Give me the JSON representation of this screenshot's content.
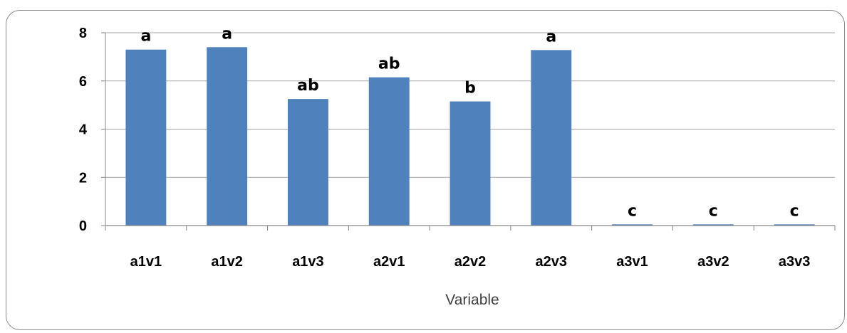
{
  "chart_data": {
    "type": "bar",
    "title": "",
    "xlabel": "Variable",
    "ylabel": "",
    "categories": [
      "a1v1",
      "a1v2",
      "a1v3",
      "a2v1",
      "a2v2",
      "a2v3",
      "a3v1",
      "a3v2",
      "a3v3"
    ],
    "values": [
      7.3,
      7.4,
      5.25,
      6.15,
      5.15,
      7.28,
      0.05,
      0.05,
      0.05
    ],
    "data_labels": [
      "a",
      "a",
      "ab",
      "ab",
      "b",
      "a",
      "c",
      "c",
      "c"
    ],
    "ylim": [
      0,
      8
    ],
    "yticks": [
      0,
      2,
      4,
      6,
      8
    ],
    "grid": true,
    "legend": "none",
    "bar_color": "#4f81bd",
    "grid_color": "#a6a6a6"
  }
}
